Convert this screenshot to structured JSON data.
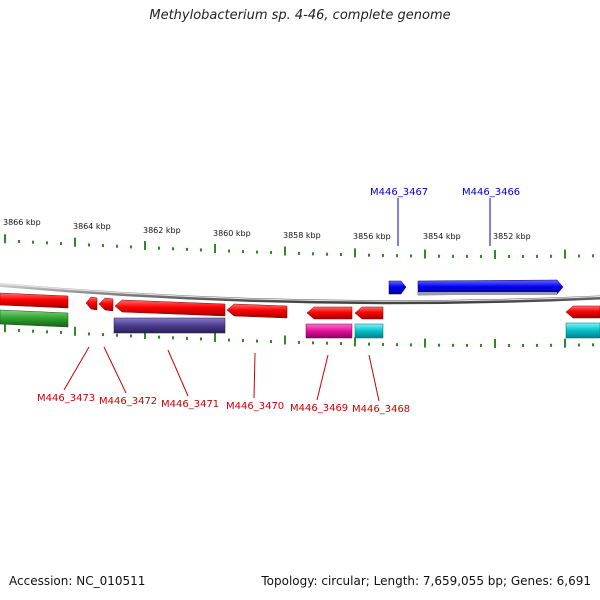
{
  "title": "Methylobacterium sp. 4-46, complete genome",
  "footer": {
    "accession": "Accession: NC_010511",
    "topology": "Topology: circular; Length: 7,659,055 bp; Genes: 6,691"
  },
  "colors": {
    "backbone": "#8c8c8c",
    "tick": "#2e8b22",
    "gene_red": "#ff0000",
    "gene_blue": "#0000ee",
    "gene_green": "#2ca02c",
    "gene_purple": "#4b3c8c",
    "gene_magenta": "#e0109a",
    "gene_cyan": "#00c0c8",
    "label_red": "#cc0000",
    "label_blue": "#0000cc"
  },
  "scale_labels": [
    "3866 kbp",
    "3864 kbp",
    "3862 kbp",
    "3860 kbp",
    "3858 kbp",
    "3856 kbp",
    "3854 kbp",
    "3852 kbp"
  ],
  "gene_labels_top": [
    {
      "id": "M446_3467",
      "color": "blue"
    },
    {
      "id": "M446_3466",
      "color": "blue"
    }
  ],
  "gene_labels_bottom": [
    {
      "id": "M446_3473",
      "color": "red"
    },
    {
      "id": "M446_3472",
      "color": "red"
    },
    {
      "id": "M446_3471",
      "color": "red"
    },
    {
      "id": "M446_3470",
      "color": "red"
    },
    {
      "id": "M446_3469",
      "color": "red"
    },
    {
      "id": "M446_3468",
      "color": "red"
    }
  ]
}
